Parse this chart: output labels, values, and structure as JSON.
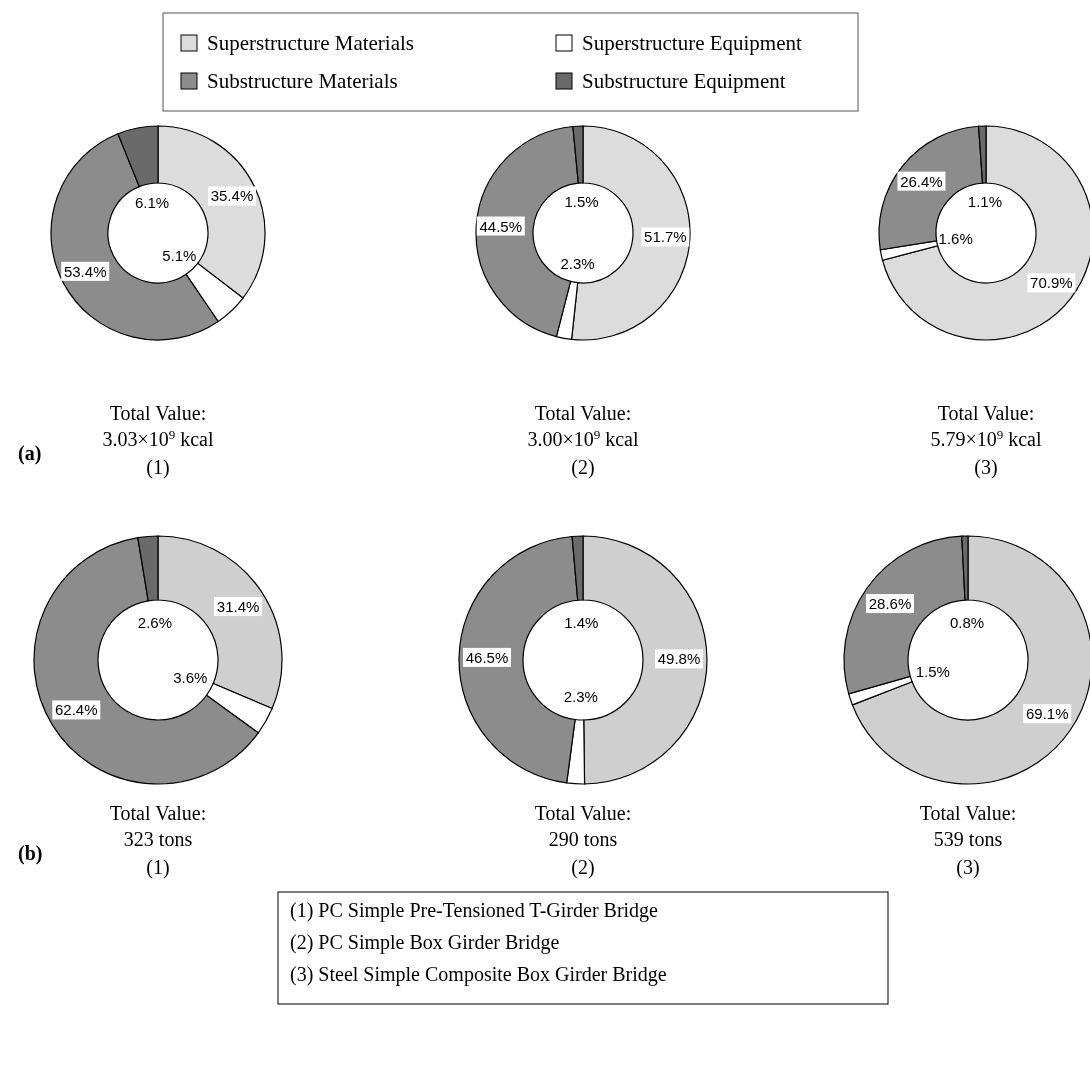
{
  "chart_data": [
    {
      "type": "donut",
      "title": "Total Value:",
      "subtitle": "3.03×10$^{9}$ kcal",
      "xlabel": "(1)",
      "categories": [
        "Superstructure Materials",
        "Superstructure Equipment",
        "Substructure Materials",
        "Substructure Equipment"
      ],
      "values": [
        35.4,
        5.1,
        53.4,
        6.1
      ],
      "value_labels": [
        "35.4%",
        "5.1%",
        "53.4%",
        "6.1%"
      ],
      "colors": [
        "#dcdcdc",
        "#ffffff",
        "#8c8c8c",
        "#6a6a6a"
      ],
      "legend": "top",
      "annotations": [
        "(a)"
      ]
    },
    {
      "type": "donut",
      "title": "Total Value:",
      "subtitle": "3.00×10$^{9}$ kcal",
      "xlabel": "(2)",
      "categories": [
        null,
        null,
        null,
        null
      ],
      "values": [
        51.7,
        2.3,
        44.5,
        1.5
      ],
      "value_labels": [
        "51.7%",
        "2.3%",
        "44.5%",
        "1.5%"
      ],
      "colors": [
        "#dcdcdc",
        "#ffffff",
        "#8c8c8c",
        "#6a6a6a"
      ]
    },
    {
      "type": "donut",
      "title": "Total Value:",
      "subtitle": "5.79×10$^{9}$ kcal",
      "xlabel": "(3)",
      "categories": [
        null,
        null,
        null,
        null
      ],
      "values": [
        70.9,
        1.6,
        26.4,
        1.1
      ],
      "value_labels": [
        "70.9%",
        "1.6%",
        "26.4%",
        "1.1%"
      ],
      "colors": [
        "#dcdcdc",
        "#ffffff",
        "#8c8c8c",
        "#6a6a6a"
      ]
    },
    {
      "type": "donut",
      "title": "Total Value:",
      "subtitle": "323 tons",
      "xlabel": "(1)",
      "categories": [
        null,
        null,
        null,
        null
      ],
      "values": [
        31.4,
        3.6,
        62.4,
        2.6
      ],
      "value_labels": [
        "31.4%",
        "3.6%",
        "62.4%",
        "2.6%"
      ],
      "colors": [
        "#cfcfcf",
        "#ffffff",
        "#8c8c8c",
        "#6a6a6a"
      ],
      "annotations": [
        "(b)"
      ]
    },
    {
      "type": "donut",
      "title": "Total Value:",
      "subtitle": "290 tons",
      "xlabel": "(2)",
      "categories": [
        null,
        null,
        null,
        null
      ],
      "values": [
        49.8,
        2.3,
        46.5,
        1.4
      ],
      "value_labels": [
        "49.8%",
        "2.3%",
        "46.5%",
        "1.4%"
      ],
      "colors": [
        "#cfcfcf",
        "#ffffff",
        "#8c8c8c",
        "#6a6a6a"
      ],
      "annotations": [
        "(1) PC Simple Pre-Tensioned T-Girder Bridge",
        "(2) PC Simple Box Girder Bridge",
        "(3) Steel Simple Composite Box Girder Bridge"
      ]
    },
    {
      "type": "donut",
      "title": "Total Value:",
      "subtitle": "539 tons",
      "xlabel": "(3)",
      "categories": [
        null,
        null,
        null,
        null
      ],
      "values": [
        69.1,
        1.5,
        28.6,
        0.8
      ],
      "value_labels": [
        "69.1%",
        "1.5%",
        "28.6%",
        "0.8%"
      ],
      "colors": [
        "#cfcfcf",
        "#ffffff",
        "#8c8c8c",
        "#6a6a6a"
      ]
    }
  ]
}
